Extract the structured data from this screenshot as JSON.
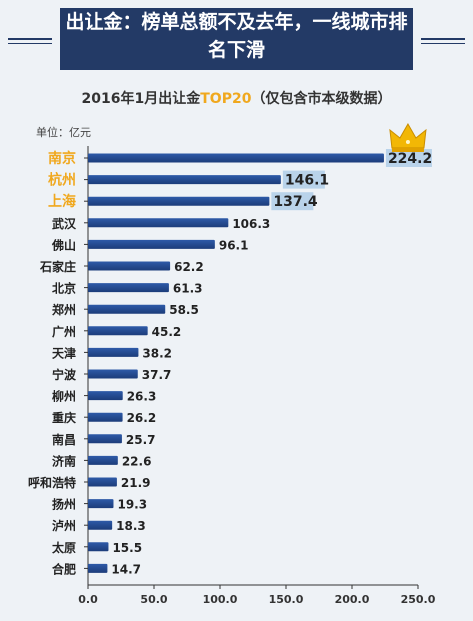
{
  "header": {
    "title_line1": "出让金：榜单总额不及去年，一线城市排",
    "title_line2": "名下滑"
  },
  "chart_data": {
    "type": "bar",
    "orientation": "horizontal",
    "title_prefix": "2016年1月出让金",
    "title_highlight": "TOP20",
    "title_suffix": "（仅包含市本级数据）",
    "unit_label": "单位：亿元",
    "categories": [
      "南京",
      "杭州",
      "上海",
      "武汉",
      "佛山",
      "石家庄",
      "北京",
      "郑州",
      "广州",
      "天津",
      "宁波",
      "柳州",
      "重庆",
      "南昌",
      "济南",
      "呼和浩特",
      "扬州",
      "泸州",
      "太原",
      "合肥"
    ],
    "values": [
      224.2,
      146.1,
      137.4,
      106.3,
      96.1,
      62.2,
      61.3,
      58.5,
      45.2,
      38.2,
      37.7,
      26.3,
      26.2,
      25.7,
      22.6,
      21.9,
      19.3,
      18.3,
      15.5,
      14.7
    ],
    "value_labels": [
      "224.2",
      "146.1",
      "137.4",
      "106.3",
      "96.1",
      "62.2",
      "61.3",
      "58.5",
      "45.2",
      "38.2",
      "37.7",
      "26.3",
      "26.2",
      "25.7",
      "22.6",
      "21.9",
      "19.3",
      "18.3",
      "15.5",
      "14.7"
    ],
    "highlight_top": 3,
    "xlim": [
      0,
      250
    ],
    "xticks": [
      "0.0",
      "50.0",
      "100.0",
      "150.0",
      "200.0",
      "250.0"
    ],
    "grid": false,
    "legend": "none",
    "crown_icon": "crown-icon",
    "colors": {
      "bar": "#2e5aa8",
      "bar_dark": "#1c3c7a",
      "highlight_label": "#f0a81e",
      "highlight_value_box": "#b9d3ea",
      "title_bg": "#233a66"
    }
  }
}
